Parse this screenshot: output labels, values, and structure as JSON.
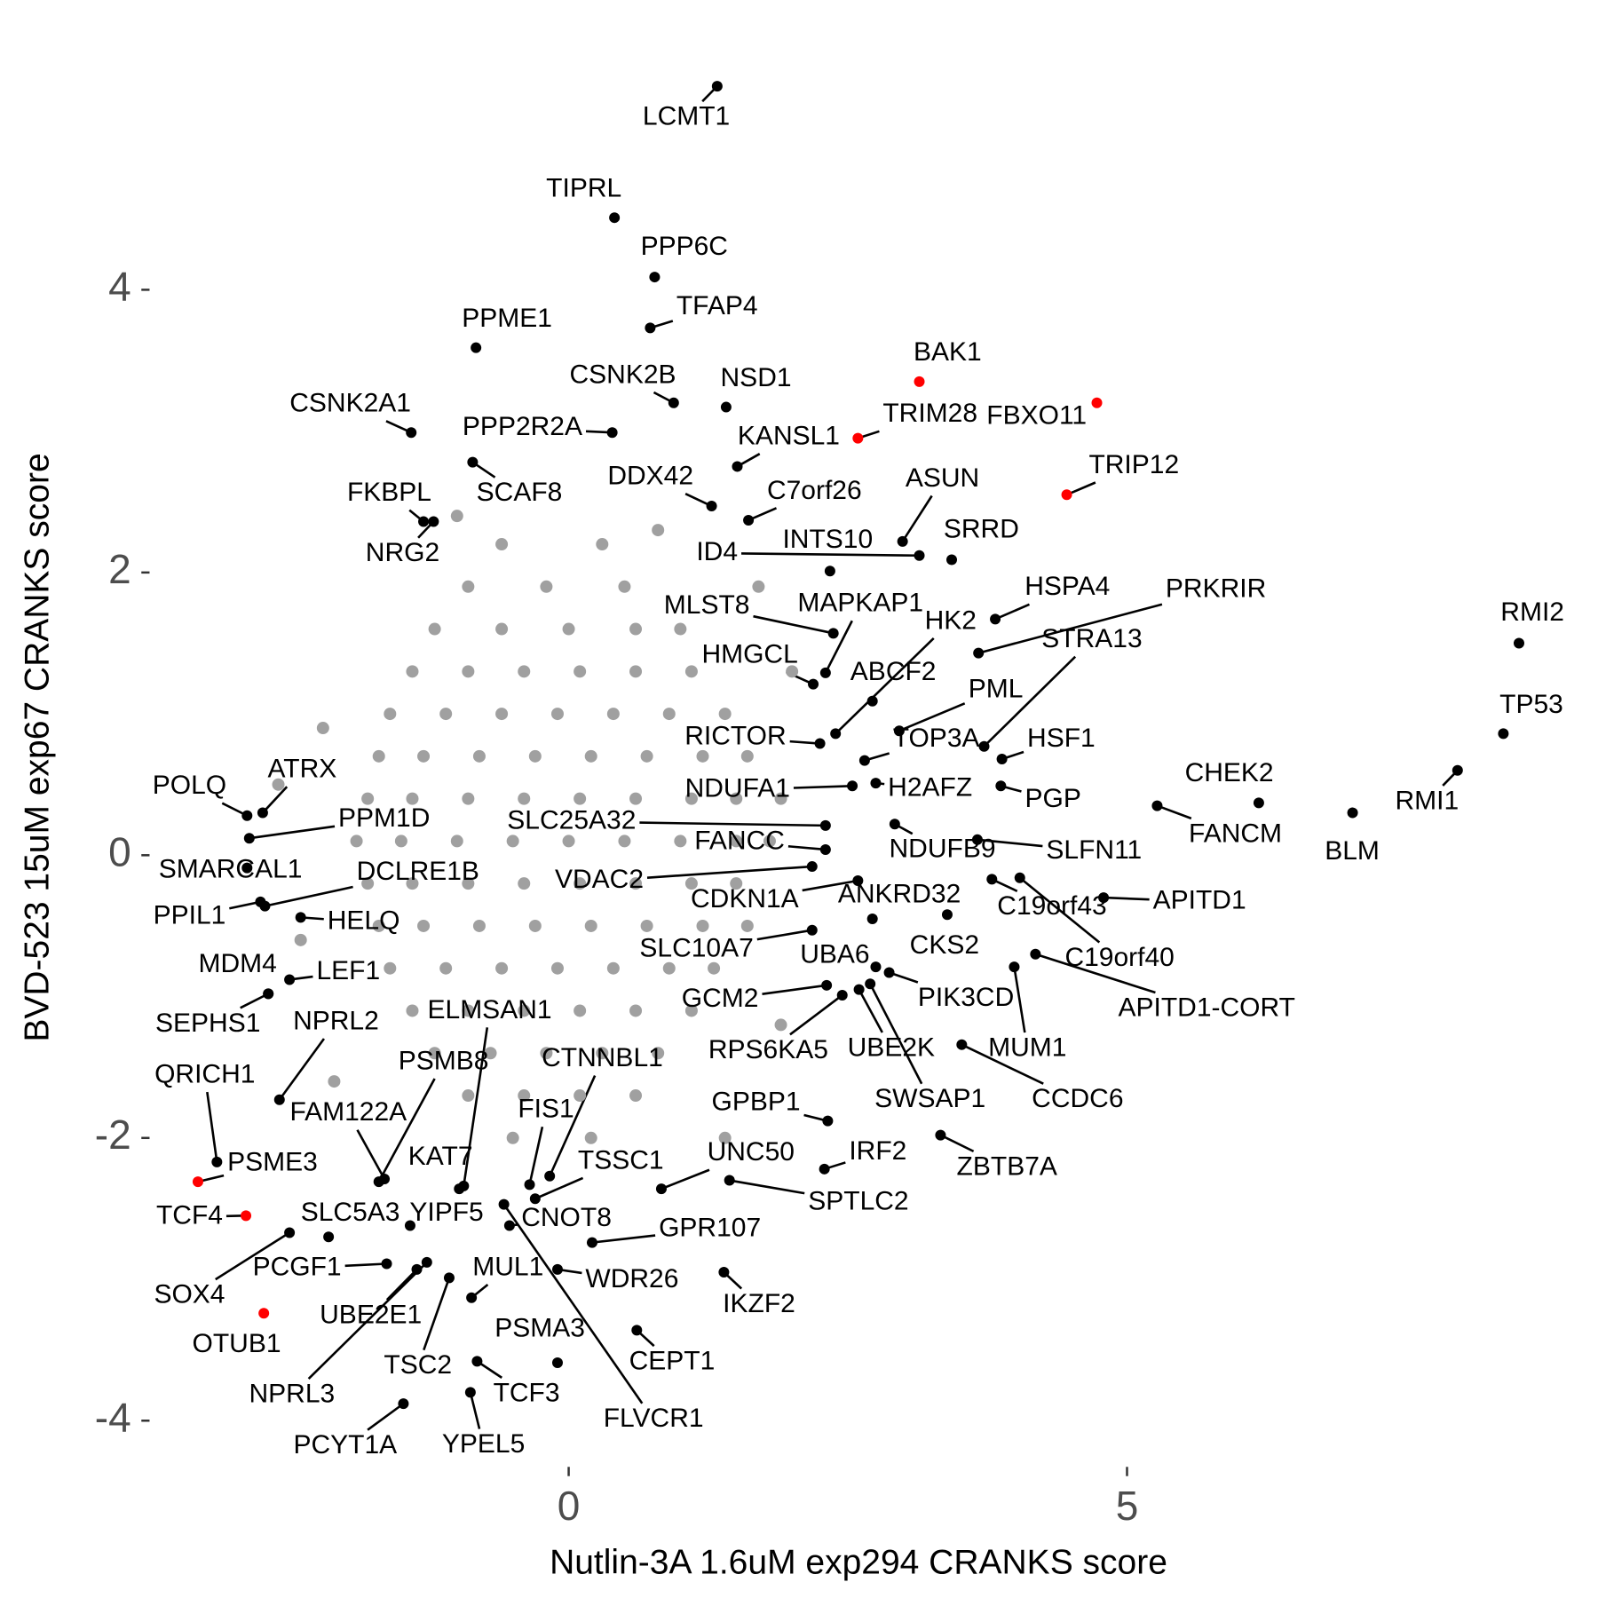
{
  "chart_data": {
    "type": "scatter",
    "x_label": "Nutlin-3A 1.6uM exp294 CRANKS score",
    "y_label": "BVD-523 15uM exp67 CRANKS score",
    "xlim": [
      -3.9,
      9.08
    ],
    "ylim": [
      -4.24,
      5.76
    ],
    "xticks": [
      0,
      5
    ],
    "yticks": [
      -4,
      -2,
      0,
      2,
      4
    ],
    "series": [
      {
        "color": "#a0a0a0",
        "x": [
          -0.6,
          0.3,
          -0.9,
          -0.2,
          0.5,
          -1.2,
          -0.6,
          0,
          0.6,
          1.0,
          -1.4,
          -0.9,
          -0.4,
          0.1,
          0.6,
          1.1,
          -1.6,
          -1.1,
          -0.6,
          -0.1,
          0.4,
          0.9,
          1.4,
          -1.7,
          -1.3,
          -0.8,
          -0.3,
          0.2,
          0.7,
          1.2,
          1.6,
          -1.8,
          -1.4,
          -0.9,
          -0.4,
          0.1,
          0.6,
          1.1,
          1.5,
          1.9,
          -1.9,
          -1.5,
          -1.0,
          -0.5,
          0,
          0.5,
          1.0,
          1.5,
          1.8,
          -1.8,
          -1.4,
          -0.9,
          -0.4,
          0.1,
          0.6,
          1.1,
          1.5,
          -1.7,
          -1.3,
          -0.8,
          -0.3,
          0.2,
          0.7,
          1.2,
          1.6,
          -1.6,
          -1.1,
          -0.6,
          -0.1,
          0.4,
          0.9,
          1.3,
          -1.4,
          -0.9,
          -0.4,
          0.1,
          0.6,
          1.1,
          -1.2,
          -0.7,
          -0.2,
          0.3,
          0.8,
          -0.9,
          -0.4,
          0.1,
          0.6,
          -0.5,
          0.2,
          -2.2,
          -2.4,
          2.0,
          1.9,
          -1.0,
          0.8,
          -2.1,
          1.4,
          -2.6,
          1.7
        ],
        "y": [
          2.2,
          2.2,
          1.9,
          1.9,
          1.9,
          1.6,
          1.6,
          1.6,
          1.6,
          1.6,
          1.3,
          1.3,
          1.3,
          1.3,
          1.3,
          1.3,
          1.0,
          1.0,
          1.0,
          1.0,
          1.0,
          1.0,
          1.0,
          0.7,
          0.7,
          0.7,
          0.7,
          0.7,
          0.7,
          0.7,
          0.7,
          0.4,
          0.4,
          0.4,
          0.4,
          0.4,
          0.4,
          0.4,
          0.4,
          0.4,
          0.1,
          0.1,
          0.1,
          0.1,
          0.1,
          0.1,
          0.1,
          0.1,
          0.1,
          -0.2,
          -0.2,
          -0.2,
          -0.2,
          -0.2,
          -0.2,
          -0.2,
          -0.2,
          -0.5,
          -0.5,
          -0.5,
          -0.5,
          -0.5,
          -0.5,
          -0.5,
          -0.5,
          -0.8,
          -0.8,
          -0.8,
          -0.8,
          -0.8,
          -0.8,
          -0.8,
          -1.1,
          -1.1,
          -1.1,
          -1.1,
          -1.1,
          -1.1,
          -1.4,
          -1.4,
          -1.4,
          -1.4,
          -1.4,
          -1.7,
          -1.7,
          -1.7,
          -1.7,
          -2.0,
          -2.0,
          0.9,
          -0.6,
          1.3,
          -1.2,
          2.4,
          2.3,
          -1.6,
          -2.0,
          0.5,
          1.9
        ]
      },
      {
        "labels": [
          "LCMT1",
          "TIPRL",
          "PPP6C",
          "TFAP4",
          "PPME1",
          "CSNK2B",
          "NSD1",
          "BAK1",
          "FBXO11",
          "TRIM28",
          "KANSL1",
          "CSNK2A1",
          "PPP2R2A",
          "SCAF8",
          "TRIP12",
          "DDX42",
          "C7orf26",
          "FKBPL",
          "NRG2",
          "INTS10",
          "ASUN",
          "SRRD",
          "ID4",
          "HSPA4",
          "PRKRIR",
          "RMI2",
          "MLST8",
          "MAPKAP1",
          "HMGCL",
          "ABCF2",
          "HK2",
          "STRA13",
          "PML",
          "TP53",
          "HSF1",
          "RICTOR",
          "TOP3A",
          "H2AFZ",
          "NDUFA1",
          "PGP",
          "CHEK2",
          "RMI1",
          "BLM",
          "FANCM",
          "SLC25A32",
          "FANCC",
          "NDUFB9",
          "SLFN11",
          "C19orf43",
          "C19orf40",
          "APITD1",
          "VDAC2",
          "CDKN1A",
          "ANKRD32",
          "CKS2",
          "SLC10A7",
          "UBA6",
          "APITD1-CORT",
          "PIK3CD",
          "GCM2",
          "RPS6KA5",
          "UBE2K",
          "SWSAP1",
          "MUM1",
          "CCDC6",
          "GPBP1",
          "IRF2",
          "ZBTB7A",
          "UNC50",
          "SPTLC2",
          "IKZF2",
          "CEPT1",
          "GPR107",
          "WDR26",
          "PSMA3",
          "FLVCR1",
          "CTNNBL1",
          "FIS1",
          "TSSC1",
          "CNOT8",
          "MUL1",
          "TCF3",
          "YPEL5",
          "ELMSAN1",
          "KAT7",
          "PSMB8",
          "FAM122A",
          "YIPF5",
          "SLC5A3",
          "PCGF1",
          "UBE2E1",
          "NPRL3",
          "TSC2",
          "PCYT1A",
          "SOX4",
          "OTUB1",
          "TCF4",
          "PSME3",
          "QRICH1",
          "NPRL2",
          "SEPHS1",
          "LEF1",
          "MDM4",
          "HELQ",
          "PPIL1",
          "DCLRE1B",
          "SMARCAL1",
          "PPM1D",
          "POLQ",
          "ATRX"
        ],
        "x": [
          1.33,
          0.41,
          0.77,
          0.73,
          -0.83,
          0.94,
          1.41,
          3.14,
          4.73,
          2.59,
          1.51,
          -1.41,
          0.39,
          -0.86,
          4.46,
          1.28,
          1.61,
          -1.3,
          -1.21,
          2.34,
          2.99,
          3.43,
          3.14,
          3.82,
          3.67,
          8.51,
          2.37,
          2.3,
          2.19,
          2.72,
          2.39,
          3.72,
          2.96,
          8.37,
          3.88,
          2.25,
          2.65,
          2.75,
          2.54,
          3.87,
          6.18,
          7.96,
          7.02,
          5.27,
          2.3,
          2.3,
          2.92,
          3.66,
          3.79,
          4.04,
          4.79,
          2.18,
          2.59,
          2.72,
          3.39,
          2.18,
          2.75,
          4.18,
          2.87,
          2.31,
          2.45,
          2.6,
          2.7,
          3.99,
          3.52,
          2.32,
          2.29,
          3.33,
          0.83,
          1.44,
          1.39,
          0.61,
          0.21,
          -0.1,
          -0.1,
          -0.58,
          -0.17,
          -0.35,
          -0.3,
          -0.53,
          -0.87,
          -0.82,
          -0.88,
          -0.94,
          -0.98,
          -1.7,
          -1.65,
          -1.42,
          -2.15,
          -1.63,
          -1.36,
          -1.27,
          -1.07,
          -1.48,
          -2.5,
          -2.73,
          -2.89,
          -3.32,
          -3.15,
          -2.59,
          -2.69,
          -2.5,
          -2.69,
          -2.4,
          -2.76,
          -2.72,
          -2.88,
          -2.86,
          -2.88,
          -2.74
        ],
        "y": [
          5.44,
          4.51,
          4.09,
          3.73,
          3.59,
          3.2,
          3.17,
          3.35,
          3.2,
          2.95,
          2.75,
          2.99,
          2.99,
          2.78,
          2.55,
          2.47,
          2.37,
          2.36,
          2.36,
          2.01,
          2.22,
          2.09,
          2.12,
          1.67,
          1.43,
          1.5,
          1.57,
          1.29,
          1.21,
          1.09,
          0.86,
          0.77,
          0.88,
          0.86,
          0.68,
          0.79,
          0.67,
          0.51,
          0.49,
          0.49,
          0.37,
          0.6,
          0.3,
          0.35,
          0.21,
          0.04,
          0.22,
          0.11,
          -0.17,
          -0.16,
          -0.3,
          -0.08,
          -0.18,
          -0.45,
          -0.42,
          -0.53,
          -0.79,
          -0.7,
          -0.83,
          -0.92,
          -0.99,
          -0.95,
          -0.91,
          -0.79,
          -1.34,
          -1.88,
          -2.22,
          -1.98,
          -2.36,
          -2.3,
          -2.95,
          -3.36,
          -2.74,
          -2.93,
          -3.59,
          -2.47,
          -2.27,
          -2.33,
          -2.43,
          -2.62,
          -3.13,
          -3.58,
          -3.8,
          -2.34,
          -2.36,
          -2.31,
          -2.29,
          -2.62,
          -2.7,
          -2.89,
          -2.93,
          -2.88,
          -2.99,
          -3.88,
          -2.67,
          -3.24,
          -2.55,
          -2.31,
          -2.17,
          -1.73,
          -0.98,
          -0.88,
          -0.98,
          -0.44,
          -0.33,
          -0.36,
          -0.09,
          0.12,
          0.28,
          0.3
        ],
        "point_colors": [
          "#000000",
          "#000000",
          "#000000",
          "#000000",
          "#000000",
          "#000000",
          "#000000",
          "#ff0000",
          "#ff0000",
          "#ff0000",
          "#000000",
          "#000000",
          "#000000",
          "#000000",
          "#ff0000",
          "#000000",
          "#000000",
          "#000000",
          "#000000",
          "#000000",
          "#000000",
          "#000000",
          "#000000",
          "#000000",
          "#000000",
          "#000000",
          "#000000",
          "#000000",
          "#000000",
          "#000000",
          "#000000",
          "#000000",
          "#000000",
          "#000000",
          "#000000",
          "#000000",
          "#000000",
          "#000000",
          "#000000",
          "#000000",
          "#000000",
          "#000000",
          "#000000",
          "#000000",
          "#000000",
          "#000000",
          "#000000",
          "#000000",
          "#000000",
          "#000000",
          "#000000",
          "#000000",
          "#000000",
          "#000000",
          "#000000",
          "#000000",
          "#000000",
          "#000000",
          "#000000",
          "#000000",
          "#000000",
          "#000000",
          "#000000",
          "#000000",
          "#000000",
          "#000000",
          "#000000",
          "#000000",
          "#000000",
          "#000000",
          "#000000",
          "#000000",
          "#000000",
          "#000000",
          "#000000",
          "#000000",
          "#000000",
          "#000000",
          "#000000",
          "#000000",
          "#000000",
          "#000000",
          "#000000",
          "#000000",
          "#000000",
          "#000000",
          "#000000",
          "#000000",
          "#000000",
          "#000000",
          "#000000",
          "#000000",
          "#000000",
          "#000000",
          "#000000",
          "#ff0000",
          "#ff0000",
          "#ff0000",
          "#000000",
          "#000000",
          "#000000",
          "#000000",
          "#000000",
          "#000000",
          "#000000",
          "#000000",
          "#000000",
          "#000000",
          "#000000",
          "#000000"
        ]
      }
    ]
  }
}
